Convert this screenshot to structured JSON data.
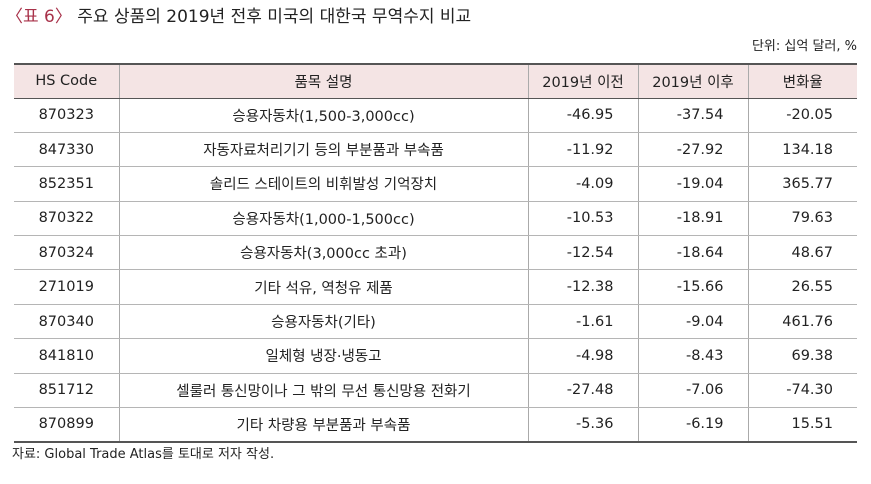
{
  "title": {
    "prefix": "〈표 6〉",
    "text": "주요 상품의 2019년 전후 미국의 대한국 무역수지 비교"
  },
  "unit_note": "단위: 십억 달러, %",
  "table": {
    "headers": [
      "HS Code",
      "품목 설명",
      "2019년 이전",
      "2019년 이후",
      "변화율"
    ],
    "rows": [
      {
        "code": "870323",
        "desc": "승용자동차(1,500-3,000cc)",
        "before": "-46.95",
        "after": "-37.54",
        "change": "-20.05"
      },
      {
        "code": "847330",
        "desc": "자동자료처리기기 등의 부분품과 부속품",
        "before": "-11.92",
        "after": "-27.92",
        "change": "134.18"
      },
      {
        "code": "852351",
        "desc": "솔리드 스테이트의 비휘발성 기억장치",
        "before": "-4.09",
        "after": "-19.04",
        "change": "365.77"
      },
      {
        "code": "870322",
        "desc": "승용자동차(1,000-1,500cc)",
        "before": "-10.53",
        "after": "-18.91",
        "change": "79.63"
      },
      {
        "code": "870324",
        "desc": "승용자동차(3,000cc 초과)",
        "before": "-12.54",
        "after": "-18.64",
        "change": "48.67"
      },
      {
        "code": "271019",
        "desc": "기타 석유, 역청유 제품",
        "before": "-12.38",
        "after": "-15.66",
        "change": "26.55"
      },
      {
        "code": "870340",
        "desc": "승용자동차(기타)",
        "before": "-1.61",
        "after": "-9.04",
        "change": "461.76"
      },
      {
        "code": "841810",
        "desc": "일체형 냉장·냉동고",
        "before": "-4.98",
        "after": "-8.43",
        "change": "69.38"
      },
      {
        "code": "851712",
        "desc": "셀룰러 통신망이나 그 밖의 무선 통신망용 전화기",
        "before": "-27.48",
        "after": "-7.06",
        "change": "-74.30"
      },
      {
        "code": "870899",
        "desc": "기타 차량용 부분품과 부속품",
        "before": "-5.36",
        "after": "-6.19",
        "change": "15.51"
      }
    ]
  },
  "source_note": "자료: Global Trade Atlas를 토대로 저자 작성."
}
